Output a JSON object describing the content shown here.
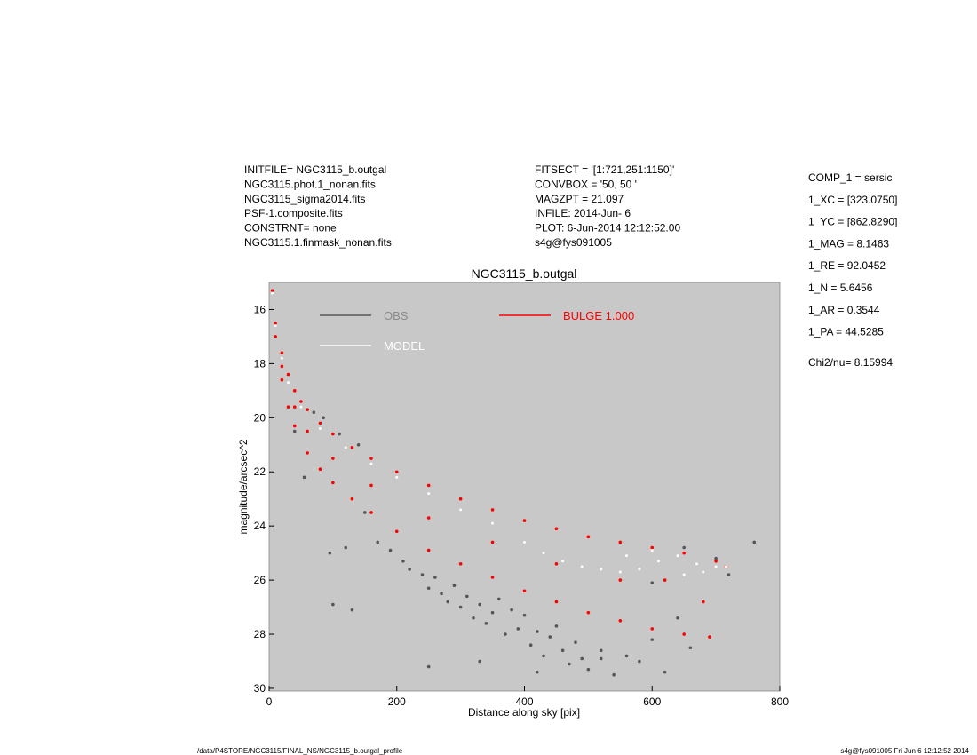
{
  "info": {
    "left": [
      "INITFILE= NGC3115_b.outgal",
      "NGC3115.phot.1_nonan.fits",
      "NGC3115_sigma2014.fits",
      "PSF-1.composite.fits",
      "CONSTRNT= none",
      "NGC3115.1.finmask_nonan.fits"
    ],
    "middle": [
      "FITSECT = '[1:721,251:1150]'",
      "CONVBOX = '50, 50  '",
      "MAGZPT  =             21.097",
      "INFILE: 2014-Jun- 6",
      "PLOT:  6-Jun-2014 12:12:52.00",
      "s4g@fys091005"
    ],
    "right": [
      "COMP_1  = sersic",
      "1_XC    = [323.0750]",
      "1_YC    = [862.8290]",
      "1_MAG   = 8.1463",
      "1_RE    = 92.0452",
      "1_N     = 5.6456",
      "1_AR    = 0.3544",
      "1_PA    = 44.5285"
    ],
    "chi2": "Chi2/nu=      8.15994",
    "footer_left": "/data/P4STORE/NGC3115/FINAL_NS/NGC3115_b.outgal_profile",
    "footer_right": "s4g@fys091005  Fri Jun  6 12:12:52 2014"
  },
  "chart_data": {
    "type": "scatter",
    "title": "NGC3115_b.outgal",
    "x_label": "Distance along sky [pix]",
    "y_label": "magnitude/arcsec^2",
    "xlim": [
      0,
      800
    ],
    "xticks": [
      0,
      200,
      400,
      600,
      800
    ],
    "ylim": [
      15,
      30.1
    ],
    "yticks": [
      16,
      18,
      20,
      22,
      24,
      26,
      28,
      30
    ],
    "y_inverted": true,
    "background": "#c8c8c8",
    "series": [
      {
        "name": "OBS",
        "color": "#555555",
        "x": [
          40,
          55,
          70,
          85,
          95,
          110,
          120,
          140,
          150,
          170,
          190,
          210,
          220,
          240,
          250,
          260,
          270,
          280,
          290,
          300,
          310,
          320,
          330,
          340,
          350,
          360,
          370,
          380,
          390,
          400,
          410,
          420,
          430,
          440,
          450,
          460,
          470,
          480,
          490,
          500,
          520,
          540,
          560,
          580,
          600,
          620,
          640,
          660,
          680,
          700,
          720,
          760,
          100,
          130,
          250,
          330,
          420,
          520,
          600,
          650
        ],
        "values": [
          20.5,
          22.2,
          19.8,
          20.0,
          25.0,
          20.6,
          24.8,
          21.0,
          23.5,
          24.6,
          24.9,
          25.3,
          25.6,
          25.8,
          26.3,
          25.9,
          26.5,
          26.8,
          26.2,
          27.0,
          26.6,
          27.4,
          26.9,
          27.6,
          27.2,
          26.7,
          28.0,
          27.1,
          27.8,
          27.3,
          28.4,
          27.9,
          28.8,
          28.1,
          27.7,
          28.6,
          29.1,
          28.3,
          28.9,
          29.3,
          28.6,
          29.5,
          28.8,
          29.0,
          28.2,
          29.4,
          27.4,
          28.5,
          26.8,
          25.2,
          25.8,
          24.6,
          26.9,
          27.1,
          29.2,
          29.0,
          29.4,
          28.9,
          26.1,
          24.8
        ]
      },
      {
        "name": "MODEL",
        "color": "#ffffff",
        "x": [
          5,
          10,
          20,
          30,
          50,
          80,
          120,
          160,
          200,
          250,
          300,
          350,
          400,
          430,
          460,
          490,
          520,
          550,
          580,
          610,
          640,
          670,
          700,
          715,
          560,
          600,
          650,
          680
        ],
        "values": [
          15.4,
          16.6,
          17.8,
          18.7,
          19.6,
          20.4,
          21.1,
          21.7,
          22.2,
          22.8,
          23.4,
          23.9,
          24.6,
          25.0,
          25.3,
          25.5,
          25.6,
          25.7,
          25.6,
          25.3,
          25.1,
          25.4,
          25.5,
          25.5,
          25.1,
          24.9,
          25.8,
          25.7
        ]
      },
      {
        "name": "BULGE  1.000",
        "color": "#ff0000",
        "x": [
          5,
          10,
          20,
          30,
          40,
          50,
          60,
          80,
          100,
          130,
          160,
          200,
          250,
          300,
          350,
          400,
          450,
          500,
          550,
          600,
          650,
          700,
          715,
          10,
          20,
          30,
          40,
          60,
          80,
          100,
          130,
          160,
          200,
          250,
          300,
          350,
          400,
          450,
          500,
          550,
          600,
          650,
          690,
          20,
          40,
          60,
          100,
          160,
          250,
          350,
          450,
          550,
          620,
          680
        ],
        "values": [
          15.3,
          16.5,
          17.6,
          18.4,
          19.0,
          19.4,
          19.7,
          20.2,
          20.6,
          21.1,
          21.5,
          22.0,
          22.5,
          23.0,
          23.4,
          23.8,
          24.1,
          24.4,
          24.6,
          24.8,
          25.0,
          25.3,
          25.5,
          17.0,
          18.6,
          19.6,
          20.3,
          21.3,
          21.9,
          22.4,
          23.0,
          23.5,
          24.2,
          24.9,
          25.4,
          25.9,
          26.4,
          26.8,
          27.2,
          27.5,
          27.8,
          28.0,
          28.1,
          18.1,
          19.6,
          20.5,
          21.5,
          22.5,
          23.7,
          24.6,
          25.4,
          26.0,
          26.0,
          26.8
        ]
      }
    ]
  }
}
